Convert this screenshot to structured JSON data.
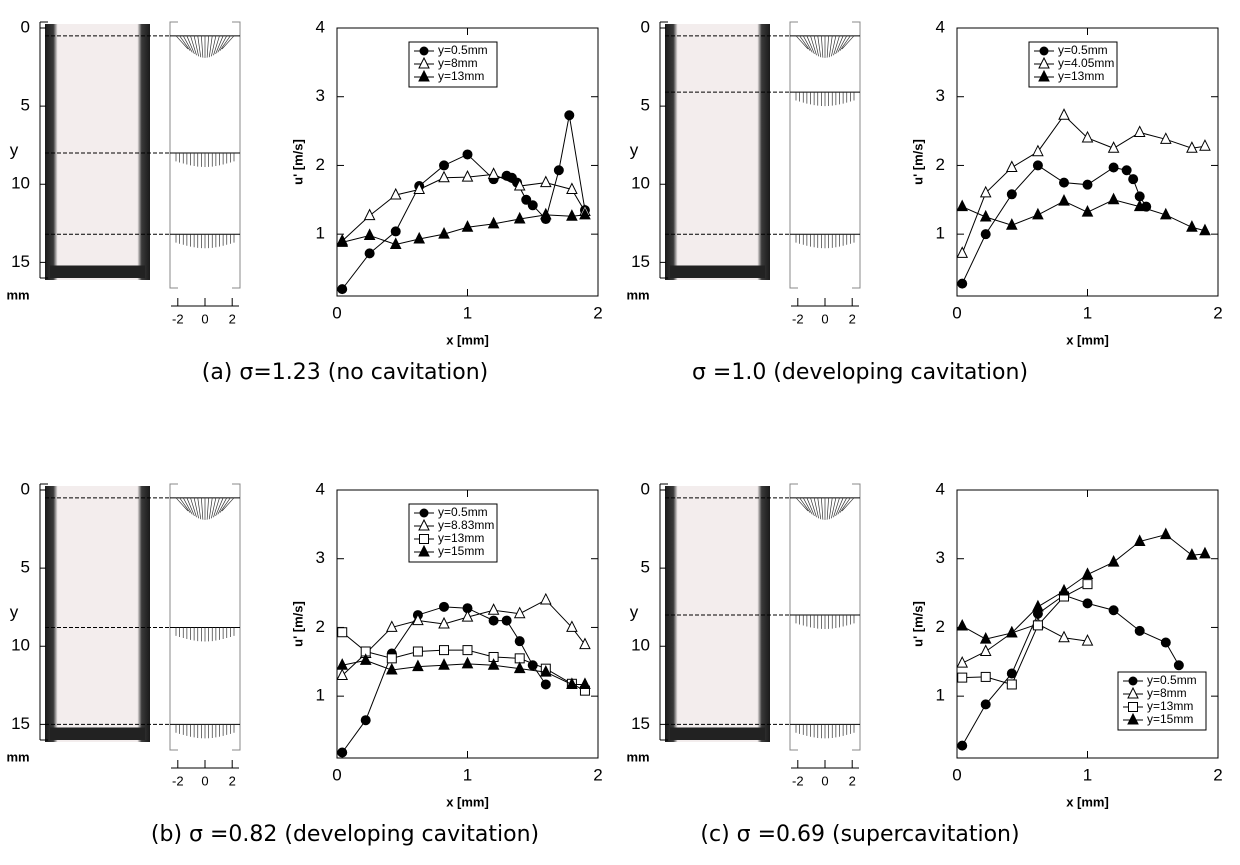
{
  "chart_data": [
    {
      "type": "line",
      "caption": "(a) σ=1.23 (no cavitation)",
      "x_label": "x [mm]",
      "y_label": "u' [m/s]",
      "xlim": [
        0,
        2
      ],
      "ylim": [
        0.1,
        4
      ],
      "xticks": [
        0,
        1,
        2
      ],
      "yticks": [
        1,
        2,
        3,
        4
      ],
      "legend": "top",
      "photo_yticks": [
        0,
        5,
        10,
        15
      ],
      "photo_ylim": [
        0,
        16
      ],
      "photo_ylabel": "y",
      "photo_unit": "mm",
      "profile_xticks": [
        -2,
        0,
        2
      ],
      "profile_xlim": [
        -2.5,
        2.5
      ],
      "profile_levels": [
        0.5,
        8,
        13.2
      ],
      "series": [
        {
          "name": "y=0.5mm",
          "marker": "circle",
          "color": "#000000",
          "x": [
            0.04,
            0.25,
            0.45,
            0.63,
            0.82,
            1.0,
            1.2,
            1.3,
            1.34,
            1.38,
            1.45,
            1.5,
            1.6,
            1.7,
            1.78,
            1.9
          ],
          "values": [
            0.2,
            0.72,
            1.04,
            1.7,
            2.0,
            2.16,
            1.8,
            1.85,
            1.82,
            1.75,
            1.5,
            1.42,
            1.22,
            1.93,
            2.73,
            1.35
          ]
        },
        {
          "name": "y=8mm",
          "marker": "triangle-open",
          "color": "#000000",
          "x": [
            0.04,
            0.25,
            0.45,
            0.63,
            0.82,
            1.0,
            1.2,
            1.4,
            1.6,
            1.8,
            1.9
          ],
          "values": [
            0.9,
            1.27,
            1.57,
            1.65,
            1.82,
            1.83,
            1.87,
            1.7,
            1.75,
            1.65,
            1.33
          ]
        },
        {
          "name": "y=13mm",
          "marker": "triangle",
          "color": "#000000",
          "x": [
            0.04,
            0.25,
            0.45,
            0.63,
            0.82,
            1.0,
            1.2,
            1.4,
            1.6,
            1.8,
            1.9
          ],
          "values": [
            0.88,
            0.98,
            0.85,
            0.93,
            1.0,
            1.1,
            1.15,
            1.22,
            1.28,
            1.26,
            1.28
          ]
        }
      ]
    },
    {
      "type": "line",
      "caption": "σ =1.0 (developing cavitation)",
      "x_label": "x [mm]",
      "y_label": "u' [m/s]",
      "xlim": [
        0,
        2
      ],
      "ylim": [
        0.1,
        4
      ],
      "xticks": [
        0,
        1,
        2
      ],
      "yticks": [
        1,
        2,
        3,
        4
      ],
      "legend": "top",
      "photo_yticks": [
        0,
        5,
        10,
        15
      ],
      "photo_ylim": [
        0,
        16
      ],
      "photo_ylabel": "y",
      "photo_unit": "mm",
      "profile_xticks": [
        -2,
        0,
        2
      ],
      "profile_xlim": [
        -2.5,
        2.5
      ],
      "profile_levels": [
        0.5,
        4.1,
        13.2
      ],
      "series": [
        {
          "name": "y=0.5mm",
          "marker": "circle",
          "color": "#000000",
          "x": [
            0.04,
            0.22,
            0.42,
            0.62,
            0.82,
            1.0,
            1.2,
            1.3,
            1.35,
            1.4,
            1.45
          ],
          "values": [
            0.28,
            1.0,
            1.58,
            2.0,
            1.75,
            1.72,
            1.97,
            1.93,
            1.8,
            1.55,
            1.4
          ]
        },
        {
          "name": "y=4.05mm",
          "marker": "triangle-open",
          "color": "#000000",
          "x": [
            0.04,
            0.22,
            0.42,
            0.62,
            0.82,
            1.0,
            1.2,
            1.4,
            1.6,
            1.8,
            1.9
          ],
          "values": [
            0.72,
            1.6,
            1.97,
            2.2,
            2.73,
            2.4,
            2.25,
            2.48,
            2.38,
            2.25,
            2.28
          ]
        },
        {
          "name": "y=13mm",
          "marker": "triangle",
          "color": "#000000",
          "x": [
            0.04,
            0.22,
            0.42,
            0.62,
            0.82,
            1.0,
            1.2,
            1.4,
            1.6,
            1.8,
            1.9
          ],
          "values": [
            1.4,
            1.25,
            1.13,
            1.28,
            1.48,
            1.32,
            1.5,
            1.4,
            1.28,
            1.1,
            1.05
          ]
        }
      ]
    },
    {
      "type": "line",
      "caption": "(b) σ =0.82 (developing cavitation)",
      "x_label": "x [mm]",
      "y_label": "u' [m/s]",
      "xlim": [
        0,
        2
      ],
      "ylim": [
        0.1,
        4
      ],
      "xticks": [
        0,
        1,
        2
      ],
      "yticks": [
        1,
        2,
        3,
        4
      ],
      "legend": "top",
      "photo_yticks": [
        0,
        5,
        10,
        15
      ],
      "photo_ylim": [
        0,
        16
      ],
      "photo_ylabel": "y",
      "photo_unit": "mm",
      "profile_xticks": [
        -2,
        0,
        2
      ],
      "profile_xlim": [
        -2.5,
        2.5
      ],
      "profile_levels": [
        0.5,
        8.8,
        15
      ],
      "series": [
        {
          "name": "y=0.5mm",
          "marker": "circle",
          "color": "#000000",
          "x": [
            0.04,
            0.22,
            0.42,
            0.62,
            0.82,
            1.0,
            1.2,
            1.3,
            1.4,
            1.5,
            1.6
          ],
          "values": [
            0.18,
            0.65,
            1.62,
            2.18,
            2.3,
            2.28,
            2.1,
            2.1,
            1.8,
            1.45,
            1.17
          ]
        },
        {
          "name": "y=8.83mm",
          "marker": "triangle-open",
          "color": "#000000",
          "x": [
            0.04,
            0.22,
            0.42,
            0.62,
            0.82,
            1.0,
            1.2,
            1.4,
            1.6,
            1.8,
            1.9
          ],
          "values": [
            1.3,
            1.62,
            2.0,
            2.1,
            2.05,
            2.15,
            2.25,
            2.2,
            2.4,
            2.0,
            1.75
          ]
        },
        {
          "name": "y=13mm",
          "marker": "square-open",
          "color": "#000000",
          "x": [
            0.04,
            0.22,
            0.42,
            0.62,
            0.82,
            1.0,
            1.2,
            1.4,
            1.6,
            1.8,
            1.9
          ],
          "values": [
            1.93,
            1.65,
            1.55,
            1.65,
            1.67,
            1.67,
            1.57,
            1.55,
            1.4,
            1.18,
            1.08
          ]
        },
        {
          "name": "y=15mm",
          "marker": "triangle",
          "color": "#000000",
          "x": [
            0.04,
            0.22,
            0.42,
            0.62,
            0.82,
            1.0,
            1.2,
            1.4,
            1.6,
            1.8,
            1.9
          ],
          "values": [
            1.45,
            1.52,
            1.38,
            1.43,
            1.45,
            1.47,
            1.45,
            1.4,
            1.35,
            1.17,
            1.17
          ]
        }
      ]
    },
    {
      "type": "line",
      "caption": "(c) σ =0.69 (supercavitation)",
      "x_label": "x [mm]",
      "y_label": "u' [m/s]",
      "xlim": [
        0,
        2
      ],
      "ylim": [
        0.1,
        4
      ],
      "xticks": [
        0,
        1,
        2
      ],
      "yticks": [
        1,
        2,
        3,
        4
      ],
      "legend": "bottom-right",
      "photo_yticks": [
        0,
        5,
        10,
        15
      ],
      "photo_ylim": [
        0,
        16
      ],
      "photo_ylabel": "y",
      "photo_unit": "mm",
      "profile_xticks": [
        -2,
        0,
        2
      ],
      "profile_xlim": [
        -2.5,
        2.5
      ],
      "profile_levels": [
        0.5,
        8,
        15
      ],
      "series": [
        {
          "name": "y=0.5mm",
          "marker": "circle",
          "color": "#000000",
          "x": [
            0.04,
            0.22,
            0.42,
            0.62,
            0.82,
            1.0,
            1.2,
            1.4,
            1.6,
            1.7
          ],
          "values": [
            0.28,
            0.88,
            1.33,
            2.2,
            2.47,
            2.35,
            2.25,
            1.95,
            1.78,
            1.45
          ]
        },
        {
          "name": "y=8mm",
          "marker": "triangle-open",
          "color": "#000000",
          "x": [
            0.04,
            0.22,
            0.42,
            0.62,
            0.82,
            1.0
          ],
          "values": [
            1.48,
            1.65,
            1.92,
            2.05,
            1.85,
            1.8
          ]
        },
        {
          "name": "y=13mm",
          "marker": "square-open",
          "color": "#000000",
          "x": [
            0.04,
            0.22,
            0.42,
            0.62,
            0.82,
            1.0
          ],
          "values": [
            1.27,
            1.28,
            1.17,
            2.03,
            2.45,
            2.63
          ]
        },
        {
          "name": "y=15mm",
          "marker": "triangle",
          "color": "#000000",
          "x": [
            0.04,
            0.22,
            0.42,
            0.62,
            0.82,
            1.0,
            1.2,
            1.4,
            1.6,
            1.8,
            1.9
          ],
          "values": [
            2.02,
            1.83,
            1.92,
            2.3,
            2.53,
            2.77,
            2.95,
            3.25,
            3.35,
            3.05,
            3.07
          ]
        }
      ]
    }
  ]
}
